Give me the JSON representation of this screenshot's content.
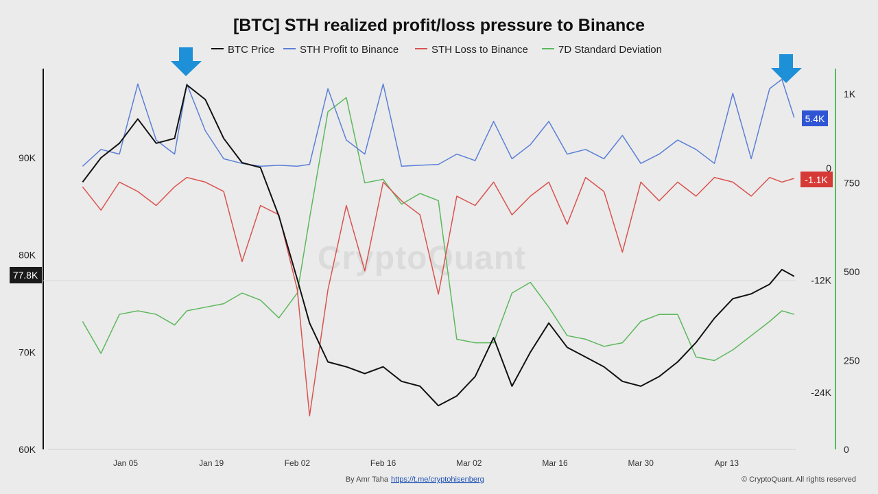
{
  "chart_data": {
    "type": "line",
    "title": "[BTC] STH realized profit/loss pressure to Binance",
    "legend": [
      "BTC Price",
      "STH Profit to Binance",
      "STH Loss to Binance",
      "7D Standard Deviation"
    ],
    "legend_position": "top-center",
    "x_ticks": [
      "Jan 05",
      "Jan 19",
      "Feb 02",
      "Feb 16",
      "Mar 02",
      "Mar 16",
      "Mar 30",
      "Apr 13"
    ],
    "y_left_ticks": [
      "60K",
      "70K",
      "80K",
      "90K"
    ],
    "y_right1_ticks": [
      "-24K",
      "-12K",
      "0"
    ],
    "y_right2_ticks": [
      "0",
      "250",
      "500",
      "750",
      "1K"
    ],
    "current_labels": {
      "btc": "77.8K",
      "profit": "5.4K",
      "loss": "-1.1K"
    },
    "annotations": [
      "arrow-down near Jan 12",
      "arrow-down near Apr 23"
    ],
    "colors": {
      "btc": "#111111",
      "profit": "#5b7fd6",
      "loss": "#d9534f",
      "stddev": "#5cb85c",
      "profit_badge": "#2f55d4",
      "loss_badge": "#d63a36",
      "price_badge": "#1a1a1a",
      "arrow": "#1e90d8"
    },
    "series": [
      {
        "name": "BTC Price",
        "axis": "left",
        "x": [
          "Dec 29",
          "Jan 01",
          "Jan 04",
          "Jan 07",
          "Jan 10",
          "Jan 13",
          "Jan 15",
          "Jan 18",
          "Jan 21",
          "Jan 24",
          "Jan 27",
          "Jan 30",
          "Feb 02",
          "Feb 04",
          "Feb 07",
          "Feb 10",
          "Feb 13",
          "Feb 16",
          "Feb 19",
          "Feb 22",
          "Feb 25",
          "Feb 28",
          "Mar 03",
          "Mar 06",
          "Mar 09",
          "Mar 12",
          "Mar 15",
          "Mar 18",
          "Mar 21",
          "Mar 24",
          "Mar 27",
          "Mar 30",
          "Apr 02",
          "Apr 05",
          "Apr 08",
          "Apr 11",
          "Apr 14",
          "Apr 17",
          "Apr 20",
          "Apr 22",
          "Apr 24"
        ],
        "values": [
          87500,
          90000,
          91500,
          94000,
          91500,
          92000,
          97500,
          96000,
          92000,
          89500,
          89000,
          84000,
          77500,
          73000,
          69000,
          68500,
          67800,
          68500,
          67000,
          66500,
          64500,
          65500,
          67500,
          71500,
          66500,
          70000,
          73000,
          70500,
          69500,
          68500,
          67000,
          66500,
          67500,
          69000,
          71000,
          73500,
          75500,
          76000,
          77000,
          78500,
          77800
        ]
      },
      {
        "name": "STH Profit to Binance",
        "axis": "right1",
        "x": [
          "Dec 29",
          "Jan 01",
          "Jan 04",
          "Jan 07",
          "Jan 10",
          "Jan 13",
          "Jan 15",
          "Jan 18",
          "Jan 21",
          "Jan 24",
          "Jan 27",
          "Jan 30",
          "Feb 02",
          "Feb 04",
          "Feb 07",
          "Feb 10",
          "Feb 13",
          "Feb 16",
          "Feb 19",
          "Feb 22",
          "Feb 25",
          "Feb 28",
          "Mar 03",
          "Mar 06",
          "Mar 09",
          "Mar 12",
          "Mar 15",
          "Mar 18",
          "Mar 21",
          "Mar 24",
          "Mar 27",
          "Mar 30",
          "Apr 02",
          "Apr 05",
          "Apr 08",
          "Apr 11",
          "Apr 14",
          "Apr 17",
          "Apr 20",
          "Apr 22",
          "Apr 24"
        ],
        "values": [
          200,
          2000,
          1500,
          9000,
          3000,
          1500,
          9000,
          4000,
          1000,
          500,
          200,
          300,
          200,
          400,
          8500,
          3000,
          1500,
          9000,
          200,
          300,
          400,
          1500,
          800,
          5000,
          1000,
          2500,
          5000,
          1500,
          2000,
          1000,
          3500,
          500,
          1500,
          3000,
          2000,
          500,
          8000,
          1000,
          8500,
          9500,
          5400
        ]
      },
      {
        "name": "STH Loss to Binance",
        "axis": "right1",
        "x": [
          "Dec 29",
          "Jan 01",
          "Jan 04",
          "Jan 07",
          "Jan 10",
          "Jan 13",
          "Jan 15",
          "Jan 18",
          "Jan 21",
          "Jan 24",
          "Jan 27",
          "Jan 30",
          "Feb 02",
          "Feb 04",
          "Feb 07",
          "Feb 10",
          "Feb 13",
          "Feb 16",
          "Feb 19",
          "Feb 22",
          "Feb 25",
          "Feb 28",
          "Mar 03",
          "Mar 06",
          "Mar 09",
          "Mar 12",
          "Mar 15",
          "Mar 18",
          "Mar 21",
          "Mar 24",
          "Mar 27",
          "Mar 30",
          "Apr 02",
          "Apr 05",
          "Apr 08",
          "Apr 11",
          "Apr 14",
          "Apr 17",
          "Apr 20",
          "Apr 22",
          "Apr 24"
        ],
        "values": [
          -2000,
          -4500,
          -1500,
          -2500,
          -4000,
          -2000,
          -1000,
          -1500,
          -2500,
          -10000,
          -4000,
          -5000,
          -13000,
          -26500,
          -13000,
          -4000,
          -11000,
          -1500,
          -3500,
          -5000,
          -13500,
          -3000,
          -4000,
          -1500,
          -5000,
          -3000,
          -1500,
          -6000,
          -1000,
          -2500,
          -9000,
          -1500,
          -3500,
          -1500,
          -3000,
          -1000,
          -1500,
          -3000,
          -1000,
          -1500,
          -1100
        ]
      },
      {
        "name": "7D Standard Deviation",
        "axis": "right2",
        "x": [
          "Dec 29",
          "Jan 01",
          "Jan 04",
          "Jan 07",
          "Jan 10",
          "Jan 13",
          "Jan 15",
          "Jan 18",
          "Jan 21",
          "Jan 24",
          "Jan 27",
          "Jan 30",
          "Feb 02",
          "Feb 04",
          "Feb 07",
          "Feb 10",
          "Feb 13",
          "Feb 16",
          "Feb 19",
          "Feb 22",
          "Feb 25",
          "Feb 28",
          "Mar 03",
          "Mar 06",
          "Mar 09",
          "Mar 12",
          "Mar 15",
          "Mar 18",
          "Mar 21",
          "Mar 24",
          "Mar 27",
          "Mar 30",
          "Apr 02",
          "Apr 05",
          "Apr 08",
          "Apr 11",
          "Apr 14",
          "Apr 17",
          "Apr 20",
          "Apr 22",
          "Apr 24"
        ],
        "values": [
          360,
          270,
          380,
          390,
          380,
          350,
          390,
          400,
          410,
          440,
          420,
          370,
          440,
          650,
          950,
          990,
          750,
          760,
          690,
          720,
          700,
          310,
          300,
          300,
          440,
          470,
          400,
          320,
          310,
          290,
          300,
          360,
          380,
          380,
          260,
          250,
          280,
          320,
          360,
          390,
          380
        ]
      }
    ]
  },
  "footer": {
    "author_prefix": "By Amr Taha",
    "author_link": "https://t.me/cryptohisenberg",
    "copyright": "© CryptoQuant. All rights reserved"
  },
  "watermark": "CryptoQuant"
}
